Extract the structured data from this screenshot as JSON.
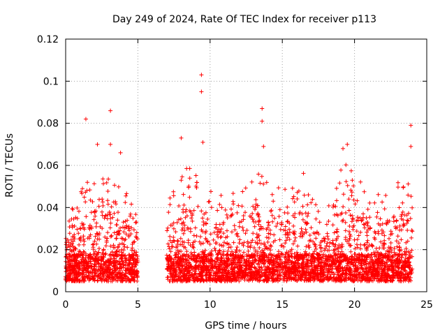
{
  "chart_data": {
    "type": "scatter",
    "title": "Day 249 of 2024, Rate Of TEC Index for receiver p113",
    "xlabel": "GPS time / hours",
    "ylabel": "ROTI / TECUs",
    "xlim": [
      0,
      25
    ],
    "ylim": [
      0,
      0.12
    ],
    "x_ticks": [
      "0",
      "5",
      "10",
      "15",
      "20",
      "25"
    ],
    "y_ticks": [
      "0",
      "0.02",
      "0.04",
      "0.06",
      "0.08",
      "0.1",
      "0.12"
    ],
    "grid": true,
    "marker": "+",
    "color": "#ff0000",
    "data_gap_hours": [
      5.0,
      7.0
    ],
    "notable_points": [
      {
        "x": 1.4,
        "y": 0.082
      },
      {
        "x": 2.2,
        "y": 0.07
      },
      {
        "x": 3.1,
        "y": 0.086
      },
      {
        "x": 3.1,
        "y": 0.07
      },
      {
        "x": 3.8,
        "y": 0.066
      },
      {
        "x": 8.0,
        "y": 0.073
      },
      {
        "x": 9.4,
        "y": 0.103
      },
      {
        "x": 9.4,
        "y": 0.095
      },
      {
        "x": 9.5,
        "y": 0.071
      },
      {
        "x": 13.6,
        "y": 0.087
      },
      {
        "x": 13.6,
        "y": 0.081
      },
      {
        "x": 13.7,
        "y": 0.069
      },
      {
        "x": 19.5,
        "y": 0.07
      },
      {
        "x": 19.2,
        "y": 0.068
      },
      {
        "x": 23.9,
        "y": 0.079
      },
      {
        "x": 23.9,
        "y": 0.069
      }
    ],
    "envelope": [
      {
        "x": 0.0,
        "y": 0.038
      },
      {
        "x": 0.5,
        "y": 0.04
      },
      {
        "x": 1.0,
        "y": 0.048
      },
      {
        "x": 1.5,
        "y": 0.052
      },
      {
        "x": 2.0,
        "y": 0.055
      },
      {
        "x": 2.5,
        "y": 0.06
      },
      {
        "x": 3.0,
        "y": 0.055
      },
      {
        "x": 3.5,
        "y": 0.052
      },
      {
        "x": 4.0,
        "y": 0.056
      },
      {
        "x": 4.5,
        "y": 0.045
      },
      {
        "x": 5.0,
        "y": 0.04
      },
      {
        "x": 7.0,
        "y": 0.045
      },
      {
        "x": 7.5,
        "y": 0.048
      },
      {
        "x": 8.0,
        "y": 0.055
      },
      {
        "x": 8.5,
        "y": 0.06
      },
      {
        "x": 9.0,
        "y": 0.058
      },
      {
        "x": 9.5,
        "y": 0.055
      },
      {
        "x": 10.0,
        "y": 0.052
      },
      {
        "x": 10.5,
        "y": 0.05
      },
      {
        "x": 11.0,
        "y": 0.048
      },
      {
        "x": 11.5,
        "y": 0.046
      },
      {
        "x": 12.0,
        "y": 0.05
      },
      {
        "x": 12.5,
        "y": 0.055
      },
      {
        "x": 13.0,
        "y": 0.058
      },
      {
        "x": 13.5,
        "y": 0.06
      },
      {
        "x": 14.0,
        "y": 0.055
      },
      {
        "x": 14.5,
        "y": 0.05
      },
      {
        "x": 15.0,
        "y": 0.052
      },
      {
        "x": 15.5,
        "y": 0.048
      },
      {
        "x": 16.0,
        "y": 0.055
      },
      {
        "x": 16.5,
        "y": 0.058
      },
      {
        "x": 17.0,
        "y": 0.045
      },
      {
        "x": 17.5,
        "y": 0.04
      },
      {
        "x": 18.0,
        "y": 0.042
      },
      {
        "x": 18.5,
        "y": 0.048
      },
      {
        "x": 19.0,
        "y": 0.058
      },
      {
        "x": 19.5,
        "y": 0.062
      },
      {
        "x": 20.0,
        "y": 0.058
      },
      {
        "x": 20.5,
        "y": 0.052
      },
      {
        "x": 21.0,
        "y": 0.05
      },
      {
        "x": 21.5,
        "y": 0.048
      },
      {
        "x": 22.0,
        "y": 0.046
      },
      {
        "x": 22.5,
        "y": 0.05
      },
      {
        "x": 23.0,
        "y": 0.052
      },
      {
        "x": 23.5,
        "y": 0.055
      },
      {
        "x": 24.0,
        "y": 0.05
      }
    ],
    "baseline_range": [
      0.005,
      0.018
    ]
  }
}
